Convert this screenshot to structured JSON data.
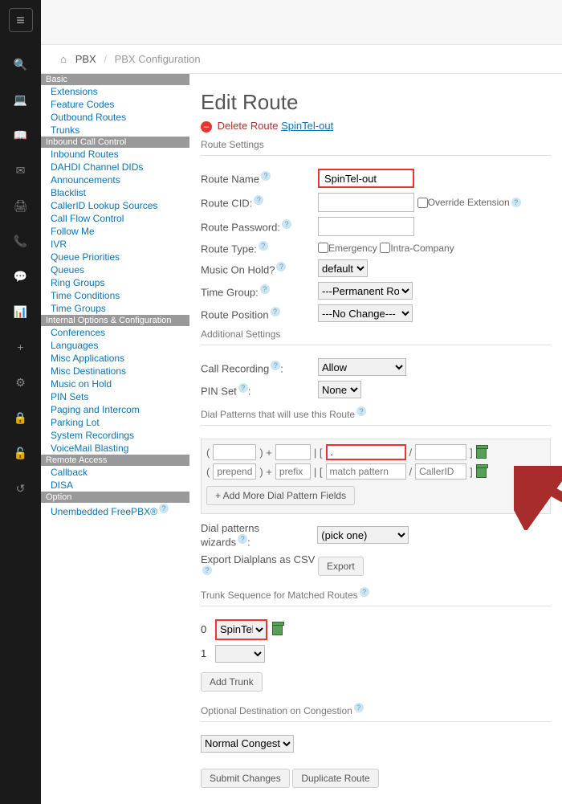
{
  "iconbar": {
    "hamburger": "≡",
    "icons": [
      "🔍",
      "💻",
      "📖",
      "✉",
      "🖨",
      "📞",
      "💬",
      "📊",
      "+",
      "⚙",
      "🔒",
      "🔓",
      "↺"
    ]
  },
  "breadcrumb": {
    "home_icon": "⌂",
    "pbx": "PBX",
    "current": "PBX Configuration"
  },
  "sidemenu": {
    "sections": [
      {
        "cat": "Basic",
        "items": [
          "Extensions",
          "Feature Codes",
          "Outbound Routes",
          "Trunks"
        ]
      },
      {
        "cat": "Inbound Call Control",
        "items": [
          "Inbound Routes",
          "DAHDI Channel DIDs",
          "Announcements",
          "Blacklist",
          "CallerID Lookup Sources",
          "Call Flow Control",
          "Follow Me",
          "IVR",
          "Queue Priorities",
          "Queues",
          "Ring Groups",
          "Time Conditions",
          "Time Groups"
        ]
      },
      {
        "cat": "Internal Options & Configuration",
        "items": [
          "Conferences",
          "Languages",
          "Misc Applications",
          "Misc Destinations",
          "Music on Hold",
          "PIN Sets",
          "Paging and Intercom",
          "Parking Lot",
          "System Recordings",
          "VoiceMail Blasting"
        ]
      },
      {
        "cat": "Remote Access",
        "items": [
          "Callback",
          "DISA"
        ]
      },
      {
        "cat": "Option",
        "items": [
          "Unembedded FreePBX®"
        ]
      }
    ]
  },
  "page": {
    "title": "Edit Route",
    "delete_label": "Delete Route",
    "route_name": "SpinTel-out",
    "sections": {
      "route_settings": "Route Settings",
      "additional_settings": "Additional Settings",
      "dial_patterns": "Dial Patterns that will use this Route",
      "trunk_seq": "Trunk Sequence for Matched Routes",
      "optional_dest": "Optional Destination on Congestion"
    },
    "fields": {
      "route_name": {
        "label": "Route Name",
        "value": "SpinTel-out"
      },
      "route_cid": {
        "label": "Route CID:",
        "value": "",
        "override": "Override Extension"
      },
      "route_password": {
        "label": "Route Password:",
        "value": ""
      },
      "route_type": {
        "label": "Route Type:",
        "emergency": "Emergency",
        "intra": "Intra-Company"
      },
      "moh": {
        "label": "Music On Hold?",
        "value": "default"
      },
      "time_group": {
        "label": "Time Group:",
        "value": "---Permanent Route---"
      },
      "route_position": {
        "label": "Route Position",
        "value": "---No Change---"
      },
      "call_recording": {
        "label": "Call Recording",
        "value": "Allow"
      },
      "pin_set": {
        "label": "PIN Set",
        "value": "None"
      }
    },
    "dial_pattern_rows": [
      {
        "prepend": "",
        "prefix": "",
        "match": ".",
        "callerid": ""
      },
      {
        "prepend_ph": "prepend",
        "prefix_ph": "prefix",
        "match_ph": "match pattern",
        "callerid_ph": "CallerID"
      }
    ],
    "buttons": {
      "add_more_dial": "+ Add More Dial Pattern Fields",
      "dial_wizards_label": "Dial patterns wizards",
      "dial_wizards_value": "(pick one)",
      "export_label": "Export Dialplans as CSV",
      "export_btn": "Export",
      "add_trunk": "Add Trunk",
      "submit": "Submit Changes",
      "duplicate": "Duplicate Route"
    },
    "trunks": [
      {
        "idx": "0",
        "value": "SpinTel"
      },
      {
        "idx": "1",
        "value": ""
      }
    ],
    "congestion": "Normal Congestion"
  },
  "colors": {
    "arrow": "#a82c2c"
  }
}
